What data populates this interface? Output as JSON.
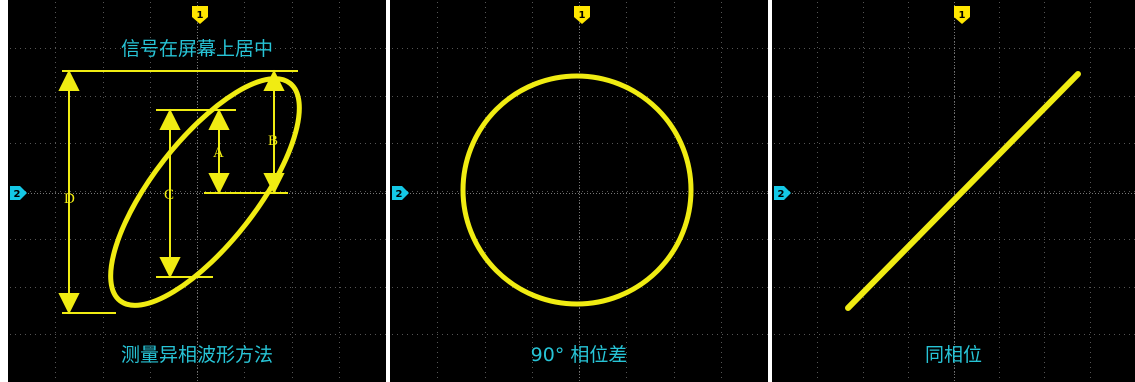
{
  "panels": [
    {
      "id": "measure",
      "top_caption": "信号在屏幕上居中",
      "bottom_caption": "测量异相波形方法",
      "ch1_marker": "1",
      "ch2_marker": "2",
      "labels": {
        "a": "A",
        "b": "B",
        "c": "C",
        "d": "D"
      }
    },
    {
      "id": "quadrature",
      "bottom_caption": "90° 相位差",
      "ch1_marker": "1",
      "ch2_marker": "2"
    },
    {
      "id": "in-phase",
      "bottom_caption": "同相位",
      "ch1_marker": "1",
      "ch2_marker": "2"
    }
  ],
  "colors": {
    "screen": "#000000",
    "trace": "#f0ec12",
    "ch1_marker": "#ffe600",
    "ch2_marker": "#14c8e6",
    "caption": "#27c4d6",
    "grid": "#5a5a5a"
  }
}
